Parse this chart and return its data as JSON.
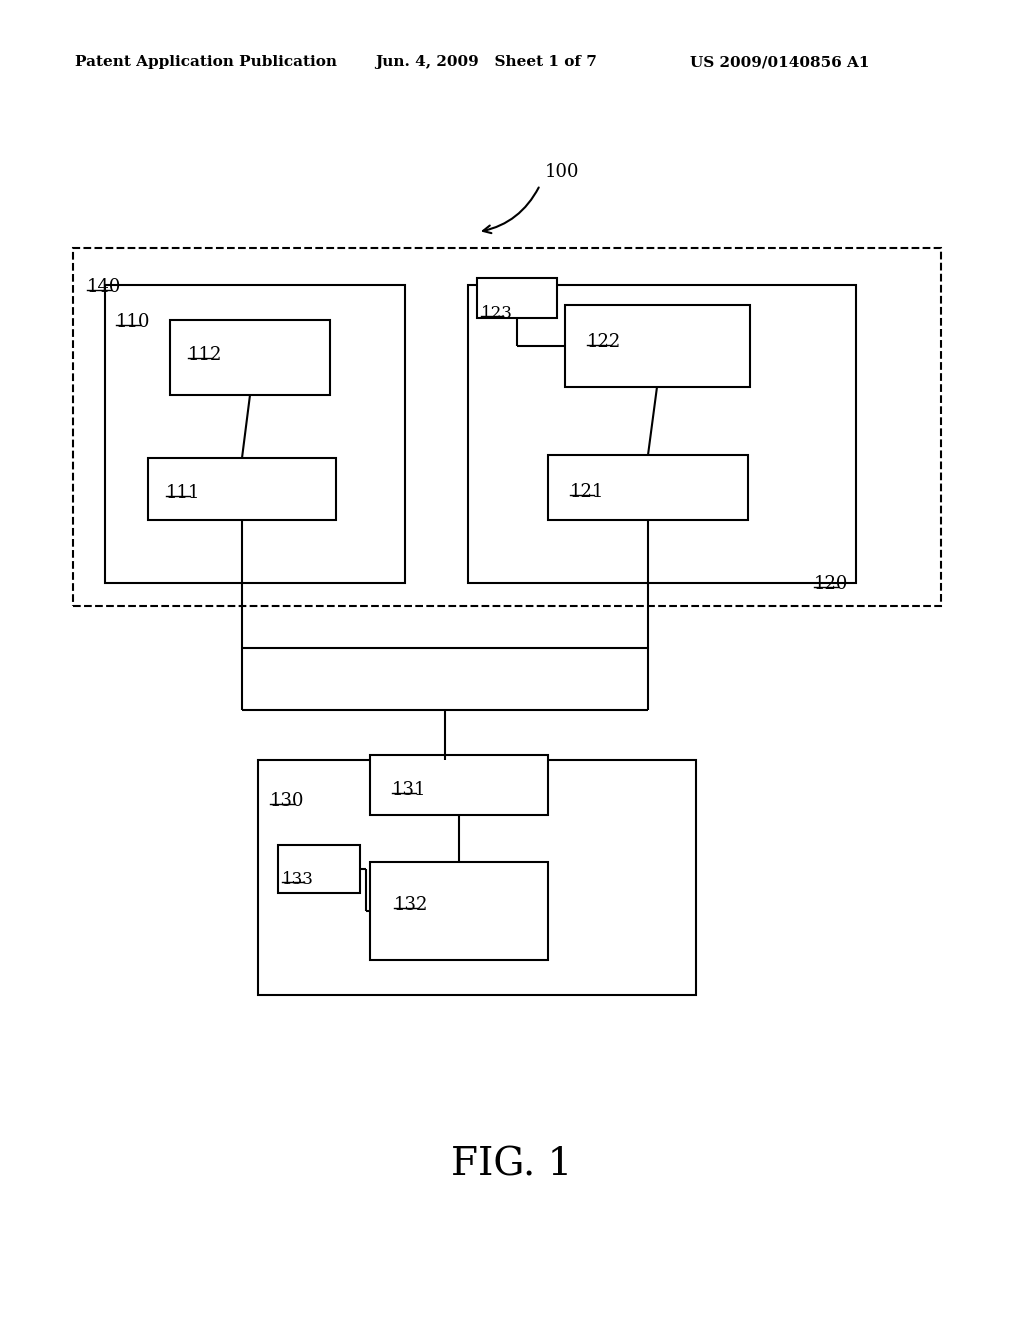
{
  "title": "FIG. 1",
  "header_left": "Patent Application Publication",
  "header_center": "Jun. 4, 2009   Sheet 1 of 7",
  "header_right": "US 2009/0140856 A1",
  "bg_color": "#ffffff",
  "label_100": "100",
  "label_140": "140",
  "label_110": "110",
  "label_111": "111",
  "label_112": "112",
  "label_120": "120",
  "label_121": "121",
  "label_122": "122",
  "label_123": "123",
  "label_130": "130",
  "label_131": "131",
  "label_132": "132",
  "label_133": "133"
}
